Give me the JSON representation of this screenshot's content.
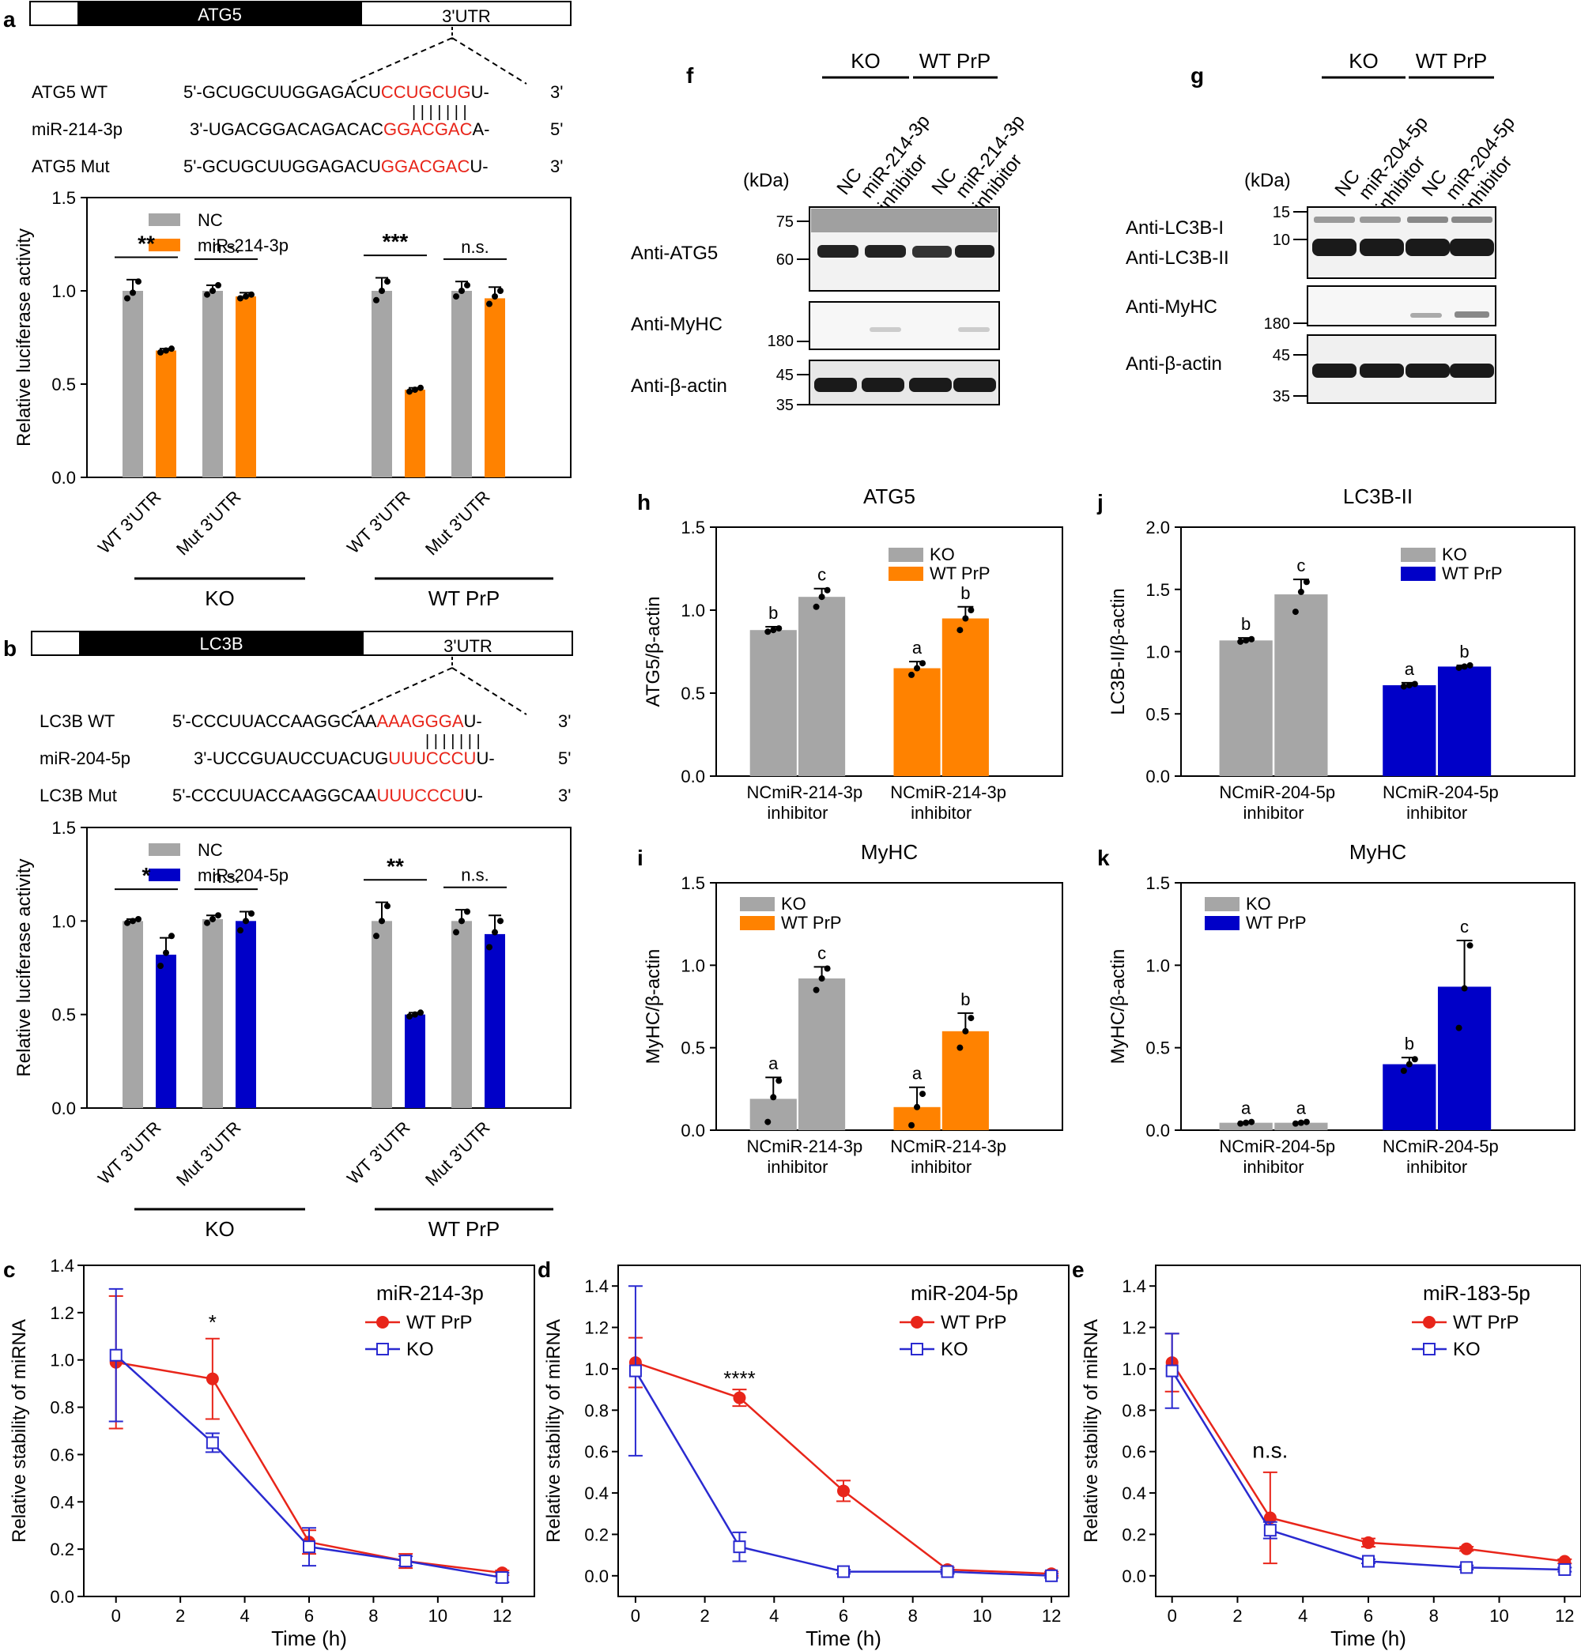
{
  "colors": {
    "gray": "#a6a6a6",
    "orange": "#ff8200",
    "blue": "#0000c8",
    "red": "#e8251a",
    "open_blue": "#2a2ad0"
  },
  "panel_letters": {
    "a": "a",
    "b": "b",
    "c": "c",
    "d": "d",
    "e": "e",
    "f": "f",
    "g": "g",
    "h": "h",
    "i": "i",
    "j": "j",
    "k": "k"
  },
  "schem_a": {
    "gene": "ATG5",
    "utr": "3'UTR",
    "wt": {
      "label": "ATG5 WT",
      "prefix": "5'-GCUGCUUGGAGACU",
      "red": "CCUGCUG",
      "suffix": "U-",
      "end": "3'"
    },
    "mir": {
      "label": "miR-214-3p",
      "prefix": "3'-UGACGGACAGACAC",
      "red": "GGACGAC",
      "suffix": "A-",
      "end": "5'"
    },
    "mut": {
      "label": "ATG5 Mut",
      "prefix": "5'-GCUGCUUGGAGACU",
      "red": "GGACGAC",
      "suffix": "U-",
      "end": "3'"
    },
    "pairs": "| | | | | | |"
  },
  "schem_b": {
    "gene": "LC3B",
    "utr": "3'UTR",
    "wt": {
      "label": "LC3B WT",
      "prefix": "5'-CCCUUACCAAGGCAA",
      "red": "AAAGGGA",
      "suffix": "U-",
      "end": "3'"
    },
    "mir": {
      "label": "miR-204-5p",
      "prefix": "3'-UCCGUAUCCUACUG",
      "red": "UUUCCCU",
      "suffix": "U-",
      "end": "5'"
    },
    "mut": {
      "label": "LC3B Mut",
      "prefix": "5'-CCCUUACCAAGGCAA",
      "red": "UUUCCCU",
      "suffix": "U-",
      "end": "3'"
    },
    "pairs": "| | | | | | |"
  },
  "blot_f": {
    "groups": [
      "KO",
      "WT PrP"
    ],
    "lanes": [
      "NC",
      "miR-214-3p\ninhibitor",
      "NC",
      "miR-214-3p\ninhibitor"
    ],
    "kda": "(kDa)",
    "rows": [
      {
        "label": "Anti-ATG5",
        "markers": [
          "75",
          "60"
        ]
      },
      {
        "label": "Anti-MyHC",
        "markers": [
          "180"
        ]
      },
      {
        "label": "Anti-β-actin",
        "markers": [
          "45",
          "35"
        ]
      }
    ]
  },
  "blot_g": {
    "groups": [
      "KO",
      "WT PrP"
    ],
    "lanes": [
      "NC",
      "miR-204-5p\ninhibitor",
      "NC",
      "miR-204-5p\ninhibitor"
    ],
    "kda": "(kDa)",
    "rows": [
      {
        "label": "Anti-LC3B-I",
        "label2": "Anti-LC3B-II",
        "markers": [
          "15",
          "10"
        ]
      },
      {
        "label": "Anti-MyHC",
        "markers": [
          "180"
        ]
      },
      {
        "label": "Anti-β-actin",
        "markers": [
          "45",
          "35"
        ]
      }
    ]
  },
  "chart_data": [
    {
      "id": "a",
      "type": "bar",
      "title": "",
      "ylabel": "Relative luciferase activity",
      "ylim": [
        0,
        1.5
      ],
      "yticks": [
        0.0,
        0.5,
        1.0,
        1.5
      ],
      "legend": [
        "NC",
        "miR-214-3p"
      ],
      "series_colors": [
        "gray",
        "orange"
      ],
      "groups": [
        {
          "name": "WT 3'UTR",
          "values": [
            1.0,
            0.68
          ],
          "points": [
            [
              0.96,
              0.99,
              1.05
            ],
            [
              0.67,
              0.68,
              0.69
            ]
          ],
          "errors": [
            0.06,
            0.01
          ],
          "sig": "**"
        },
        {
          "name": "Mut 3'UTR",
          "values": [
            1.0,
            0.97
          ],
          "points": [
            [
              0.98,
              1.0,
              1.03
            ],
            [
              0.96,
              0.97,
              0.98
            ]
          ],
          "errors": [
            0.03,
            0.02
          ],
          "sig": "n.s."
        },
        {
          "name": "WT 3'UTR",
          "values": [
            1.0,
            0.47
          ],
          "points": [
            [
              0.95,
              1.0,
              1.05
            ],
            [
              0.46,
              0.47,
              0.48
            ]
          ],
          "errors": [
            0.07,
            0.01
          ],
          "sig": "***"
        },
        {
          "name": "Mut 3'UTR",
          "values": [
            1.0,
            0.96
          ],
          "points": [
            [
              0.97,
              1.0,
              1.03
            ],
            [
              0.93,
              0.97,
              1.0
            ]
          ],
          "errors": [
            0.05,
            0.06
          ],
          "sig": "n.s."
        }
      ],
      "cohorts": [
        "KO",
        "WT PrP"
      ]
    },
    {
      "id": "b",
      "type": "bar",
      "title": "",
      "ylabel": "Relative luciferase activity",
      "ylim": [
        0,
        1.5
      ],
      "yticks": [
        0.0,
        0.5,
        1.0,
        1.5
      ],
      "legend": [
        "NC",
        "miR-204-5p"
      ],
      "series_colors": [
        "gray",
        "blue"
      ],
      "groups": [
        {
          "name": "WT 3'UTR",
          "values": [
            1.0,
            0.82
          ],
          "points": [
            [
              0.99,
              1.0,
              1.01
            ],
            [
              0.76,
              0.83,
              0.92
            ]
          ],
          "errors": [
            0.01,
            0.09
          ],
          "sig": "*"
        },
        {
          "name": "Mut 3'UTR",
          "values": [
            1.01,
            1.0
          ],
          "points": [
            [
              0.99,
              1.01,
              1.03
            ],
            [
              0.95,
              1.0,
              1.04
            ]
          ],
          "errors": [
            0.02,
            0.05
          ],
          "sig": "n.s."
        },
        {
          "name": "WT 3'UTR",
          "values": [
            1.0,
            0.5
          ],
          "points": [
            [
              0.92,
              1.0,
              1.08
            ],
            [
              0.49,
              0.5,
              0.51
            ]
          ],
          "errors": [
            0.1,
            0.01
          ],
          "sig": "**"
        },
        {
          "name": "Mut 3'UTR",
          "values": [
            1.0,
            0.93
          ],
          "points": [
            [
              0.94,
              1.0,
              1.05
            ],
            [
              0.86,
              0.94,
              1.0
            ]
          ],
          "errors": [
            0.06,
            0.1
          ],
          "sig": "n.s."
        }
      ],
      "cohorts": [
        "KO",
        "WT PrP"
      ]
    },
    {
      "id": "h",
      "type": "bar",
      "title": "ATG5",
      "ylabel": "ATG5/β-actin",
      "ylim": [
        0,
        1.5
      ],
      "yticks": [
        0.0,
        0.5,
        1.0,
        1.5
      ],
      "legend": [
        "KO",
        "WT PrP"
      ],
      "legend_colors": [
        "gray",
        "orange"
      ],
      "categories": [
        "NC",
        "miR-214-3p",
        "NC",
        "miR-214-3p"
      ],
      "sublabel": "inhibitor",
      "values": [
        0.88,
        1.08,
        0.65,
        0.95
      ],
      "errors": [
        0.02,
        0.05,
        0.04,
        0.07
      ],
      "points": [
        [
          0.87,
          0.88,
          0.89
        ],
        [
          1.02,
          1.08,
          1.12
        ],
        [
          0.61,
          0.65,
          0.68
        ],
        [
          0.88,
          0.95,
          1.0
        ]
      ],
      "letters": [
        "b",
        "c",
        "a",
        "b"
      ],
      "bar_colors": [
        "gray",
        "gray",
        "orange",
        "orange"
      ]
    },
    {
      "id": "j",
      "type": "bar",
      "title": "LC3B-II",
      "ylabel": "LC3B-II/β-actin",
      "ylim": [
        0,
        2.0
      ],
      "yticks": [
        0.0,
        0.5,
        1.0,
        1.5,
        2.0
      ],
      "legend": [
        "KO",
        "WT PrP"
      ],
      "legend_colors": [
        "gray",
        "blue"
      ],
      "categories": [
        "NC",
        "miR-204-5p",
        "NC",
        "miR-204-5p"
      ],
      "sublabel": "inhibitor",
      "values": [
        1.09,
        1.46,
        0.73,
        0.88
      ],
      "errors": [
        0.02,
        0.12,
        0.02,
        0.01
      ],
      "points": [
        [
          1.08,
          1.09,
          1.1
        ],
        [
          1.32,
          1.48,
          1.56
        ],
        [
          0.72,
          0.73,
          0.74
        ],
        [
          0.87,
          0.88,
          0.89
        ]
      ],
      "letters": [
        "b",
        "c",
        "a",
        "b"
      ],
      "bar_colors": [
        "gray",
        "gray",
        "blue",
        "blue"
      ]
    },
    {
      "id": "i",
      "type": "bar",
      "title": "MyHC",
      "ylabel": "MyHC/β-actin",
      "ylim": [
        0,
        1.5
      ],
      "yticks": [
        0.0,
        0.5,
        1.0,
        1.5
      ],
      "legend": [
        "KO",
        "WT PrP"
      ],
      "legend_colors": [
        "gray",
        "orange"
      ],
      "categories": [
        "NC",
        "miR-214-3p",
        "NC",
        "miR-214-3p"
      ],
      "sublabel": "inhibitor",
      "values": [
        0.19,
        0.92,
        0.14,
        0.6
      ],
      "errors": [
        0.13,
        0.07,
        0.12,
        0.11
      ],
      "points": [
        [
          0.05,
          0.2,
          0.3
        ],
        [
          0.85,
          0.92,
          0.98
        ],
        [
          0.03,
          0.14,
          0.22
        ],
        [
          0.5,
          0.6,
          0.68
        ]
      ],
      "letters": [
        "a",
        "c",
        "a",
        "b"
      ],
      "bar_colors": [
        "gray",
        "gray",
        "orange",
        "orange"
      ]
    },
    {
      "id": "k",
      "type": "bar",
      "title": "MyHC",
      "ylabel": "MyHC/β-actin",
      "ylim": [
        0,
        1.5
      ],
      "yticks": [
        0.0,
        0.5,
        1.0,
        1.5
      ],
      "legend": [
        "KO",
        "WT PrP"
      ],
      "legend_colors": [
        "gray",
        "blue"
      ],
      "categories": [
        "NC",
        "miR-204-5p",
        "NC",
        "miR-204-5p"
      ],
      "sublabel": "inhibitor",
      "values": [
        0.045,
        0.045,
        0.4,
        0.87
      ],
      "errors": [
        0.005,
        0.005,
        0.04,
        0.28
      ],
      "points": [
        [
          0.04,
          0.045,
          0.05
        ],
        [
          0.04,
          0.045,
          0.05
        ],
        [
          0.36,
          0.4,
          0.43
        ],
        [
          0.62,
          0.86,
          1.12
        ]
      ],
      "letters": [
        "a",
        "a",
        "b",
        "c"
      ],
      "bar_colors": [
        "gray",
        "gray",
        "blue",
        "blue"
      ]
    },
    {
      "id": "c",
      "type": "line",
      "title": "",
      "ylabel": "Relative stability of miRNA",
      "xlabel": "Time (h)",
      "xlim": [
        -1,
        13
      ],
      "xticks": [
        0,
        2,
        4,
        6,
        8,
        10,
        12
      ],
      "ylim": [
        0,
        1.4
      ],
      "yticks": [
        0.0,
        0.2,
        0.4,
        0.6,
        0.8,
        1.0,
        1.2,
        1.4
      ],
      "legend_title": "miR-214-3p",
      "series": [
        {
          "name": "WT PrP",
          "color": "red",
          "marker": "filled-circle",
          "x": [
            0,
            3,
            6,
            9,
            12
          ],
          "values": [
            0.99,
            0.92,
            0.23,
            0.15,
            0.1
          ],
          "errors": [
            0.28,
            0.17,
            0.05,
            0.03,
            0.01
          ]
        },
        {
          "name": "KO",
          "color": "open_blue",
          "marker": "open-square",
          "x": [
            0,
            3,
            6,
            9,
            12
          ],
          "values": [
            1.02,
            0.65,
            0.21,
            0.15,
            0.08
          ],
          "errors": [
            0.28,
            0.04,
            0.08,
            0.02,
            0.02
          ]
        }
      ],
      "annotations": [
        {
          "text": "*",
          "x": 3,
          "y": 1.13
        }
      ]
    },
    {
      "id": "d",
      "type": "line",
      "title": "",
      "ylabel": "Relative stability of miRNA",
      "xlabel": "Time (h)",
      "xlim": [
        -0.5,
        12.5
      ],
      "xticks": [
        0,
        2,
        4,
        6,
        8,
        10,
        12
      ],
      "ylim": [
        -0.1,
        1.5
      ],
      "yticks": [
        0.0,
        0.2,
        0.4,
        0.6,
        0.8,
        1.0,
        1.2,
        1.4
      ],
      "legend_title": "miR-204-5p",
      "series": [
        {
          "name": "WT PrP",
          "color": "red",
          "marker": "filled-circle",
          "x": [
            0,
            3,
            6,
            9,
            12
          ],
          "values": [
            1.03,
            0.86,
            0.41,
            0.03,
            0.01
          ],
          "errors": [
            0.12,
            0.04,
            0.05,
            0.01,
            0.01
          ]
        },
        {
          "name": "KO",
          "color": "open_blue",
          "marker": "open-square",
          "x": [
            0,
            3,
            6,
            9,
            12
          ],
          "values": [
            0.99,
            0.14,
            0.02,
            0.02,
            0.0
          ],
          "errors": [
            0.41,
            0.07,
            0.01,
            0.01,
            0.01
          ]
        }
      ],
      "annotations": [
        {
          "text": "****",
          "x": 3,
          "y": 0.92
        }
      ]
    },
    {
      "id": "e",
      "type": "line",
      "title": "",
      "ylabel": "Relative stability of miRNA",
      "xlabel": "Time (h)",
      "xlim": [
        -0.5,
        12.5
      ],
      "xticks": [
        0,
        2,
        4,
        6,
        8,
        10,
        12
      ],
      "ylim": [
        -0.1,
        1.5
      ],
      "yticks": [
        0.0,
        0.2,
        0.4,
        0.6,
        0.8,
        1.0,
        1.2,
        1.4
      ],
      "legend_title": "miR-183-5p",
      "series": [
        {
          "name": "WT PrP",
          "color": "red",
          "marker": "filled-circle",
          "x": [
            0,
            3,
            6,
            9,
            12
          ],
          "values": [
            1.03,
            0.28,
            0.16,
            0.13,
            0.07
          ],
          "errors": [
            0.14,
            0.22,
            0.02,
            0.01,
            0.01
          ]
        },
        {
          "name": "KO",
          "color": "open_blue",
          "marker": "open-square",
          "x": [
            0,
            3,
            6,
            9,
            12
          ],
          "values": [
            0.99,
            0.22,
            0.07,
            0.04,
            0.03
          ],
          "errors": [
            0.18,
            0.04,
            0.01,
            0.01,
            0.01
          ]
        }
      ],
      "annotations": [
        {
          "text": "n.s.",
          "x": 3,
          "y": 0.57
        }
      ]
    }
  ]
}
